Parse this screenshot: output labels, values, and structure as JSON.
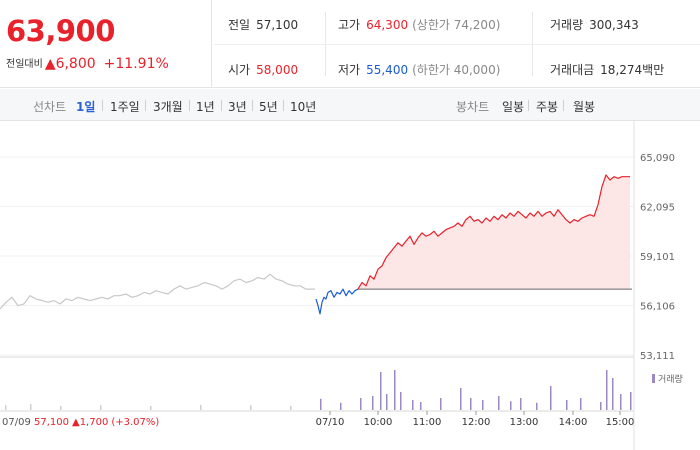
{
  "summary": {
    "price": "63,900",
    "change_label": "전일대비",
    "change": "▲6,800",
    "change_pct": "+11.91%",
    "prev_close_label": "전일",
    "prev_close": "57,100",
    "high_label": "고가",
    "high": "64,300",
    "upper_limit": "(상한가 74,200)",
    "volume_label": "거래량",
    "volume": "300,343",
    "open_label": "시가",
    "open": "58,000",
    "low_label": "저가",
    "low": "55,400",
    "lower_limit": "(하한가 40,000)",
    "amount_label": "거래대금",
    "amount": "18,274",
    "amount_unit": "백만"
  },
  "tabs": {
    "line_label": "선차트",
    "line_periods": [
      "1일",
      "1주일",
      "3개월",
      "1년",
      "3년",
      "5년",
      "10년"
    ],
    "active_period": "1일",
    "candle_label": "봉차트",
    "candle_periods": [
      "일봉",
      "주봉",
      "월봉"
    ]
  },
  "colors": {
    "up": "#e8212b",
    "down": "#1a5bd6",
    "prev_day": "#c8c8c8",
    "area_fill": "#fde6e6",
    "volume_today": "#9c88c4"
  },
  "chart_data": {
    "type": "line",
    "y_ticks": [
      "65,090",
      "62,095",
      "59,101",
      "56,106",
      "53,111"
    ],
    "ylim": [
      53111,
      65090
    ],
    "baseline": 57100,
    "x_ticks": [
      "07/10",
      "10:00",
      "11:00",
      "12:00",
      "13:00",
      "14:00",
      "15:00"
    ],
    "prev_day_label": "07/09",
    "prev_day_summary": {
      "close": "57,100",
      "change": "▲1,700",
      "pct": "(+3.07%)"
    },
    "volume_legend": "거래량",
    "series": [
      {
        "day": "07/09",
        "x": [
          0,
          6,
          12,
          18,
          24,
          30,
          36,
          42,
          48,
          54,
          60,
          66,
          72,
          78,
          84,
          90,
          96,
          102,
          108,
          114,
          120,
          126,
          132,
          138,
          144,
          150,
          156,
          162,
          168,
          174,
          180,
          186,
          192,
          198,
          204,
          210,
          216,
          222,
          228,
          234,
          240,
          246,
          252,
          258,
          264,
          270,
          276,
          282,
          288,
          294,
          300,
          306,
          310,
          315
        ],
        "values": [
          55900,
          56300,
          56600,
          56100,
          56200,
          56700,
          56500,
          56400,
          56300,
          56400,
          56200,
          56500,
          56400,
          56600,
          56500,
          56400,
          56500,
          56600,
          56500,
          56700,
          56700,
          56800,
          56600,
          56700,
          56900,
          56800,
          57000,
          56900,
          56800,
          57100,
          57300,
          57100,
          57200,
          57300,
          57500,
          57400,
          57300,
          57100,
          57300,
          57600,
          57700,
          57500,
          57600,
          57800,
          57700,
          58000,
          57700,
          57600,
          57400,
          57300,
          57300,
          57100,
          57100,
          57100
        ]
      },
      {
        "day": "07/10",
        "x": [
          316,
          318,
          320,
          322,
          324,
          326,
          328,
          331,
          334,
          337,
          340,
          343,
          346,
          349,
          352,
          355,
          358
        ],
        "values": [
          56500,
          56100,
          55600,
          56300,
          56600,
          56500,
          56900,
          57000,
          56600,
          56900,
          56800,
          57100,
          56700,
          57000,
          56800,
          57000,
          57100
        ]
      },
      {
        "day": "07/10",
        "x": [
          358,
          362,
          366,
          370,
          374,
          378,
          382,
          386,
          390,
          394,
          398,
          402,
          406,
          410,
          414,
          418,
          422,
          426,
          430,
          434,
          438,
          442,
          446,
          450,
          454,
          458,
          462,
          466,
          470,
          474,
          478,
          482,
          486,
          490,
          494,
          498,
          502,
          506,
          510,
          514,
          518,
          522,
          526,
          530,
          534,
          538,
          542,
          546,
          550,
          554,
          558,
          562,
          566,
          570,
          574,
          578,
          582,
          586,
          590,
          594,
          598,
          602,
          606,
          610,
          614,
          618,
          622,
          626,
          630
        ],
        "values": [
          57100,
          57500,
          57300,
          57900,
          57700,
          58300,
          58500,
          59000,
          59300,
          59600,
          59900,
          59700,
          60000,
          60300,
          59800,
          60200,
          60500,
          60300,
          60400,
          60600,
          60300,
          60500,
          60700,
          60800,
          60900,
          61100,
          60900,
          61300,
          61500,
          61200,
          61300,
          61100,
          61400,
          61200,
          61500,
          61300,
          61600,
          61400,
          61700,
          61500,
          61800,
          61600,
          61400,
          61700,
          61500,
          61800,
          61500,
          61700,
          61800,
          61500,
          61900,
          61600,
          61300,
          61100,
          61300,
          61200,
          61400,
          61500,
          61600,
          61500,
          62200,
          63300,
          64000,
          63700,
          63900,
          63800,
          63900,
          63900,
          63900
        ]
      }
    ],
    "volume": {
      "x": [
        5,
        30,
        60,
        100,
        150,
        200,
        250,
        290,
        320,
        340,
        360,
        372,
        380,
        386,
        394,
        400,
        412,
        420,
        440,
        460,
        470,
        482,
        498,
        510,
        520,
        536,
        550,
        566,
        580,
        600,
        606,
        612,
        620,
        630
      ],
      "values": [
        0.12,
        0.15,
        0.1,
        0.12,
        0.1,
        0.13,
        0.12,
        0.1,
        0.28,
        0.18,
        0.3,
        0.35,
        0.95,
        0.4,
        1.0,
        0.45,
        0.25,
        0.2,
        0.3,
        0.55,
        0.3,
        0.25,
        0.35,
        0.22,
        0.3,
        0.18,
        0.6,
        0.25,
        0.3,
        0.2,
        1.0,
        0.8,
        0.4,
        0.45
      ],
      "today_from": 316
    }
  }
}
